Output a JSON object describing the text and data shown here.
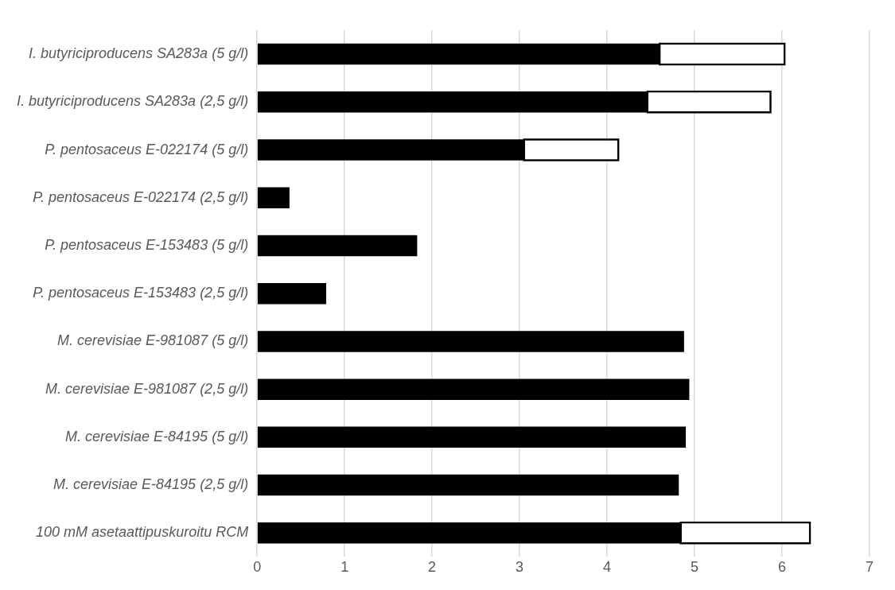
{
  "chart_data": {
    "type": "bar",
    "orientation": "horizontal",
    "stacked": true,
    "categories": [
      "I. butyriciproducens SA283a (5 g/l)",
      "I. butyriciproducens SA283a (2,5 g/l)",
      "P. pentosaceus E-022174 (5 g/l)",
      "P. pentosaceus E-022174 (2,5 g/l)",
      "P. pentosaceus E-153483 (5 g/l)",
      "P. pentosaceus E-153483 (2,5 g/l)",
      "M. cerevisiae E-981087 (5 g/l)",
      "M. cerevisiae E-981087 (2,5 g/l)",
      "M. cerevisiae E-84195 (5 g/l)",
      "M. cerevisiae E-84195 (2,5 g/l)",
      "100 mM asetaattipuskuroitu RCM"
    ],
    "series": [
      {
        "color": "#000000",
        "values": [
          4.6,
          4.46,
          3.05,
          0.37,
          1.83,
          0.79,
          4.88,
          4.94,
          4.9,
          4.82,
          4.84
        ]
      },
      {
        "color": "#ffffff",
        "values": [
          1.43,
          1.41,
          1.08,
          null,
          null,
          null,
          null,
          null,
          null,
          null,
          1.48
        ]
      }
    ],
    "xlim": [
      0,
      7
    ],
    "xticks": [
      0,
      1,
      2,
      3,
      4,
      5,
      6,
      7
    ],
    "grid": "x",
    "legend": false
  }
}
